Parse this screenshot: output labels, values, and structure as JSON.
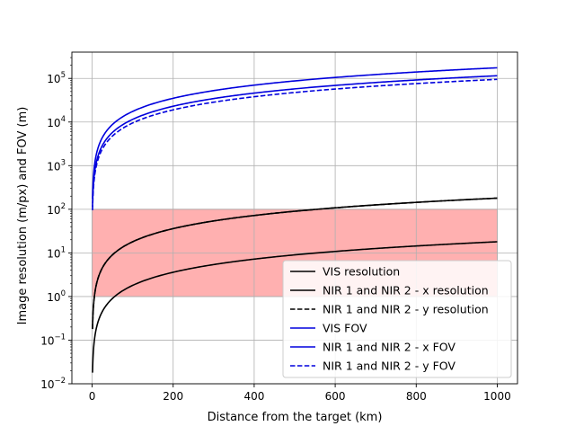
{
  "chart_data": {
    "type": "line",
    "title": "",
    "xlabel": "Distance from the target (km)",
    "ylabel": "Image resolution (m/px) and FOV (m)",
    "xlim": [
      -50,
      1050
    ],
    "ylim": [
      0.01,
      400000
    ],
    "yscale": "log",
    "grid": true,
    "legend_position": "lower-right",
    "x_ticks": [
      0,
      200,
      400,
      600,
      800,
      1000
    ],
    "x_tick_labels": [
      "0",
      "200",
      "400",
      "600",
      "800",
      "1000"
    ],
    "y_ticks": [
      0.01,
      0.1,
      1,
      10,
      100,
      1000,
      10000,
      100000
    ],
    "y_tick_labels": [
      {
        "base": "10",
        "exp": "−2"
      },
      {
        "base": "10",
        "exp": "−1"
      },
      {
        "base": "10",
        "exp": "0"
      },
      {
        "base": "10",
        "exp": "1"
      },
      {
        "base": "10",
        "exp": "2"
      },
      {
        "base": "10",
        "exp": "3"
      },
      {
        "base": "10",
        "exp": "4"
      },
      {
        "base": "10",
        "exp": "5"
      }
    ],
    "shaded_region": {
      "x": [
        0,
        1000
      ],
      "y": [
        1,
        100
      ],
      "color": "#ffb0b0"
    },
    "x": [
      1,
      2,
      5,
      10,
      20,
      50,
      100,
      200,
      300,
      400,
      500,
      600,
      700,
      800,
      900,
      1000
    ],
    "series": [
      {
        "name": "VIS resolution",
        "color": "#000000",
        "dash": "solid",
        "values": [
          0.018,
          0.036,
          0.09,
          0.18,
          0.36,
          0.9,
          1.8,
          3.6,
          5.4,
          7.2,
          9.0,
          10.8,
          12.6,
          14.4,
          16.2,
          18.0
        ]
      },
      {
        "name": "NIR 1 and NIR 2 - x resolution",
        "color": "#000000",
        "dash": "solid",
        "values": [
          0.18,
          0.36,
          0.9,
          1.8,
          3.6,
          9.0,
          18.0,
          36.0,
          54.0,
          72.0,
          90.0,
          108.0,
          126.0,
          144.0,
          162.0,
          180.0
        ]
      },
      {
        "name": "NIR 1 and NIR 2 - y resolution",
        "color": "#000000",
        "dash": "dashed",
        "values": [
          0.18,
          0.36,
          0.9,
          1.8,
          3.6,
          9.0,
          18.0,
          36.0,
          54.0,
          72.0,
          90.0,
          108.0,
          126.0,
          144.0,
          162.0,
          180.0
        ]
      },
      {
        "name": "VIS FOV",
        "color": "#0000dd",
        "dash": "solid",
        "values": [
          175,
          350,
          875,
          1750,
          3500,
          8750,
          17500,
          35000,
          52500,
          70000,
          87500,
          105000,
          122500,
          140000,
          157500,
          175000
        ]
      },
      {
        "name": "NIR 1 and NIR 2 - x FOV",
        "color": "#0000dd",
        "dash": "solid",
        "values": [
          115,
          230,
          575,
          1150,
          2300,
          5750,
          11500,
          23000,
          34500,
          46000,
          57500,
          69000,
          80500,
          92000,
          103500,
          115000
        ]
      },
      {
        "name": "NIR 1 and NIR 2 - y FOV",
        "color": "#0000dd",
        "dash": "dashed",
        "values": [
          95,
          190,
          475,
          950,
          1900,
          4750,
          9500,
          19000,
          28500,
          38000,
          47500,
          57000,
          66500,
          76000,
          85500,
          95000
        ]
      }
    ]
  }
}
